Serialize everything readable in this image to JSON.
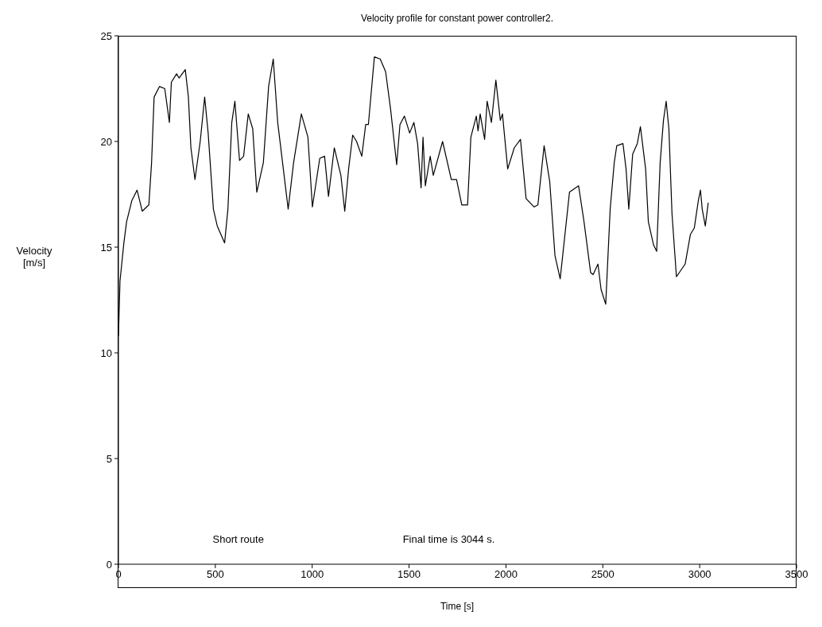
{
  "chart_data": {
    "type": "line",
    "title": "Velocity profile for constant power controller2.",
    "xlabel": "Time [s]",
    "ylabel": "Velocity\n[m/s]",
    "annotations": [
      "Short route",
      "Final time is 3044 s."
    ],
    "x": [
      0,
      8,
      28,
      42,
      69,
      96,
      123,
      157,
      171,
      184,
      212,
      239,
      263,
      273,
      300,
      313,
      345,
      361,
      374,
      395,
      422,
      445,
      463,
      490,
      510,
      548,
      565,
      585,
      601,
      625,
      646,
      670,
      693,
      714,
      748,
      775,
      799,
      822,
      876,
      904,
      944,
      978,
      1001,
      1039,
      1064,
      1084,
      1114,
      1148,
      1168,
      1188,
      1209,
      1229,
      1256,
      1276,
      1290,
      1321,
      1351,
      1379,
      1405,
      1436,
      1453,
      1476,
      1503,
      1525,
      1544,
      1562,
      1572,
      1584,
      1609,
      1625,
      1673,
      1718,
      1745,
      1772,
      1802,
      1819,
      1847,
      1856,
      1867,
      1890,
      1903,
      1925,
      1948,
      1971,
      1982,
      2009,
      2043,
      2075,
      2104,
      2145,
      2165,
      2197,
      2226,
      2253,
      2280,
      2328,
      2375,
      2403,
      2437,
      2450,
      2475,
      2491,
      2515,
      2538,
      2559,
      2572,
      2604,
      2620,
      2634,
      2654,
      2678,
      2694,
      2721,
      2735,
      2762,
      2778,
      2796,
      2813,
      2827,
      2841,
      2857,
      2880,
      2925,
      2952,
      2972,
      2993,
      3004,
      3013,
      3029,
      3044
    ],
    "series": [
      {
        "color": "#000000",
        "values": [
          10.8,
          13.4,
          15.2,
          16.2,
          17.2,
          17.7,
          16.7,
          17.0,
          19.0,
          22.1,
          22.6,
          22.5,
          20.9,
          22.8,
          23.2,
          23.0,
          23.4,
          22.1,
          19.7,
          18.2,
          20.0,
          22.1,
          20.4,
          16.8,
          16.0,
          15.2,
          16.8,
          20.9,
          21.9,
          19.1,
          19.3,
          21.3,
          20.6,
          17.6,
          19.0,
          22.6,
          23.9,
          20.9,
          16.8,
          19.0,
          21.3,
          20.2,
          16.9,
          19.2,
          19.3,
          17.4,
          19.7,
          18.4,
          16.7,
          18.7,
          20.3,
          20.0,
          19.3,
          20.8,
          20.8,
          24.0,
          23.9,
          23.3,
          21.5,
          18.9,
          20.8,
          21.2,
          20.4,
          20.9,
          19.9,
          17.8,
          20.2,
          17.9,
          19.3,
          18.4,
          20.0,
          18.2,
          18.2,
          17.0,
          17.0,
          20.2,
          21.2,
          20.5,
          21.3,
          20.1,
          21.9,
          20.9,
          22.9,
          21.0,
          21.3,
          18.7,
          19.7,
          20.1,
          17.3,
          16.9,
          17.0,
          19.8,
          18.1,
          14.6,
          13.5,
          17.6,
          17.9,
          16.2,
          13.8,
          13.7,
          14.2,
          13.0,
          12.3,
          16.8,
          19.0,
          19.8,
          19.9,
          18.7,
          16.8,
          19.4,
          19.9,
          20.7,
          18.7,
          16.2,
          15.1,
          14.8,
          19.0,
          21.0,
          21.9,
          20.6,
          16.6,
          13.6,
          14.2,
          15.6,
          15.9,
          17.2,
          17.7,
          16.8,
          16.0,
          17.1
        ]
      }
    ],
    "xlim": [
      0,
      3500
    ],
    "xticks": [
      0,
      500,
      1000,
      1500,
      2000,
      2500,
      3000,
      3500
    ],
    "ylim": [
      0,
      25
    ],
    "yticks": [
      0,
      5,
      10,
      15,
      20,
      25
    ],
    "marker": "none",
    "line_style": "solid"
  }
}
